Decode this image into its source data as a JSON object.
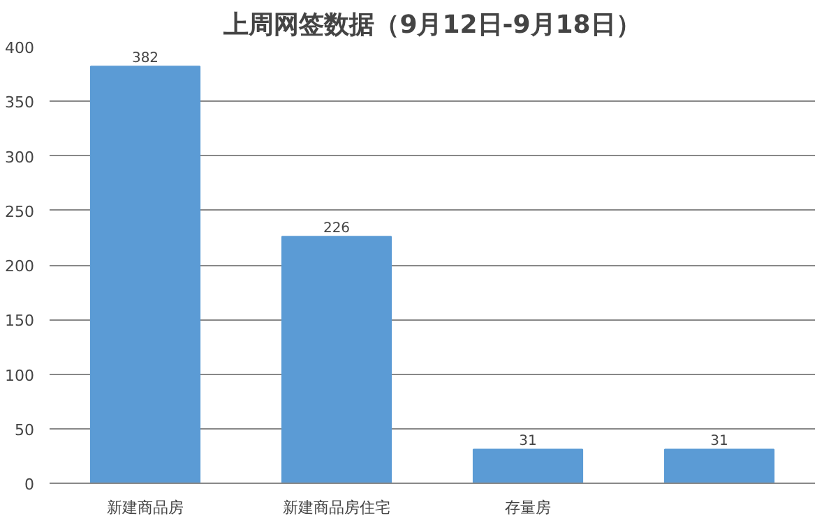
{
  "chart_data": {
    "type": "bar",
    "title": "上周网签数据（9月12日-9月18日）",
    "categories": [
      "新建商品房",
      "新建商品房住宅",
      "存量房",
      null
    ],
    "values": [
      382,
      226,
      31,
      31
    ],
    "color": "#5b9bd5",
    "data_labels": true,
    "ylim": [
      0,
      400
    ],
    "yticks": [
      0,
      50,
      100,
      150,
      200,
      250,
      300,
      350,
      400
    ],
    "grid": "y"
  }
}
